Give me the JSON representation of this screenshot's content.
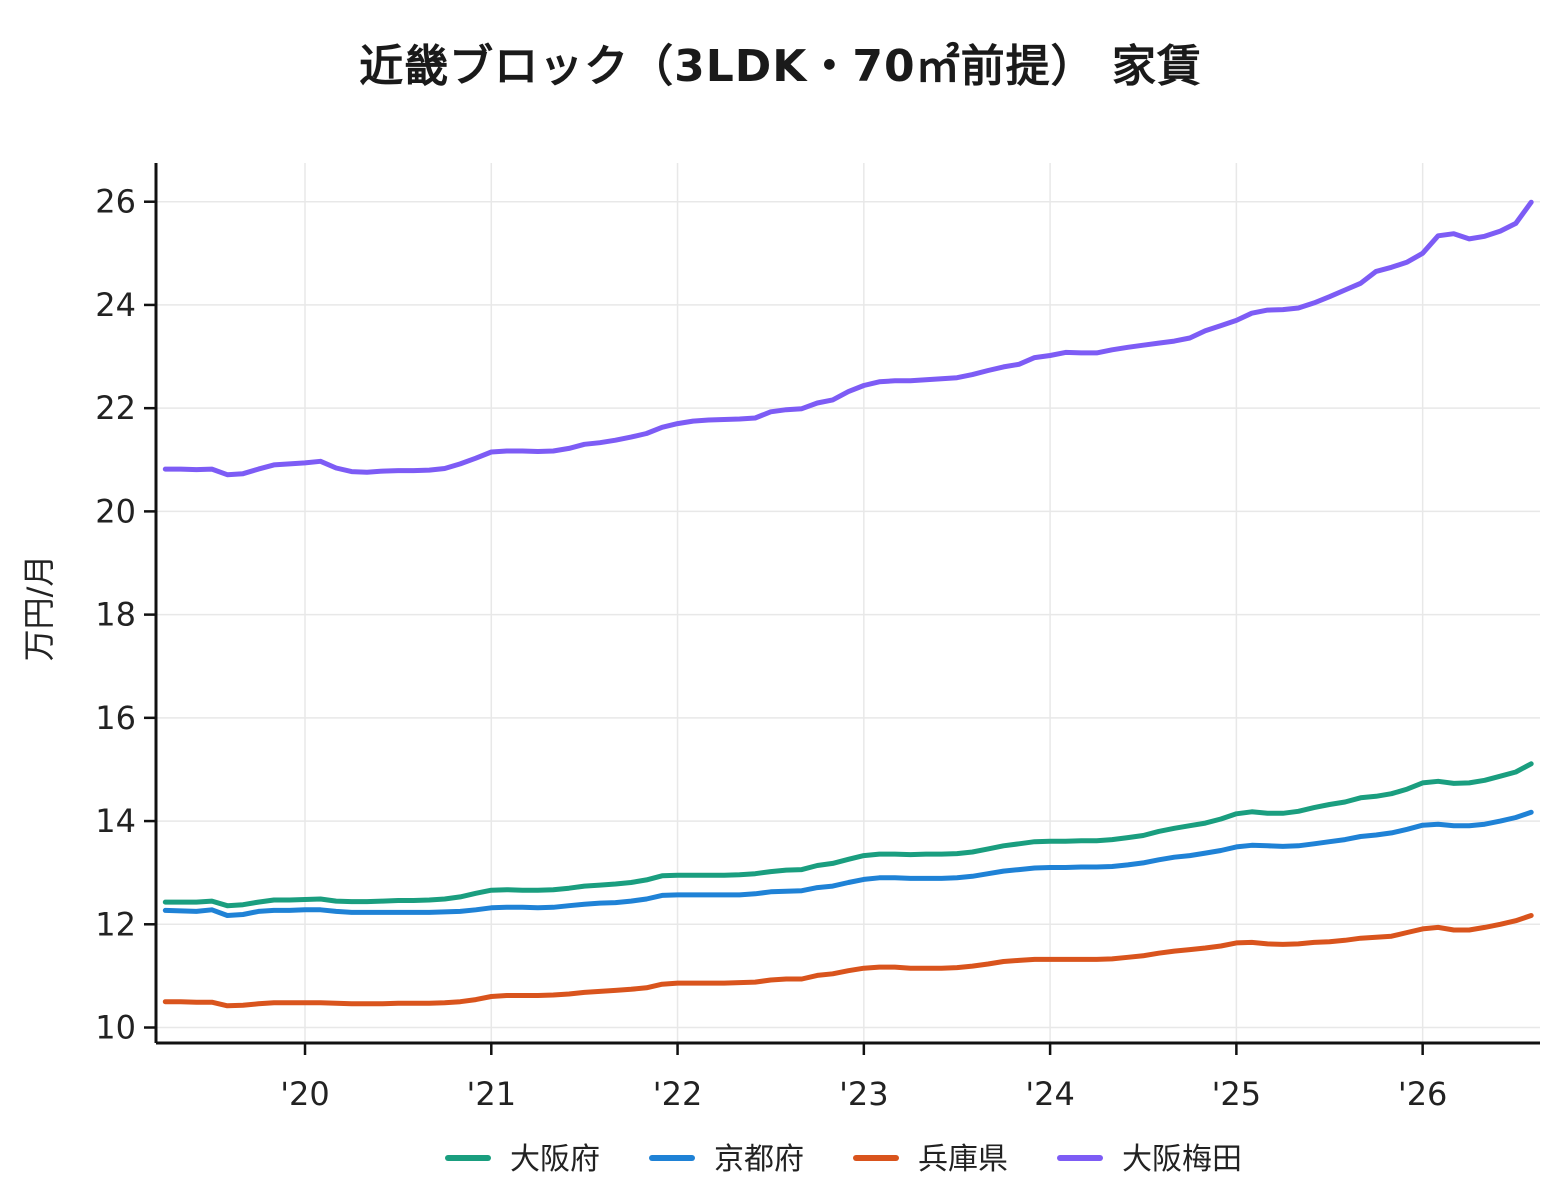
{
  "chart_data": {
    "type": "line",
    "title": "近畿ブロック（3LDK・70㎡前提） 家賃",
    "xlabel": "",
    "ylabel": "万円/月",
    "x_ticks": [
      {
        "value": 2020.0,
        "label": "'20"
      },
      {
        "value": 2021.0,
        "label": "'21"
      },
      {
        "value": 2022.0,
        "label": "'22"
      },
      {
        "value": 2023.0,
        "label": "'23"
      },
      {
        "value": 2024.0,
        "label": "'24"
      },
      {
        "value": 2025.0,
        "label": "'25"
      },
      {
        "value": 2026.0,
        "label": "'26"
      }
    ],
    "y_ticks": [
      10,
      12,
      14,
      16,
      18,
      20,
      22,
      24,
      26
    ],
    "xlim": [
      2019.2,
      2026.63
    ],
    "ylim": [
      9.7,
      26.75
    ],
    "grid": true,
    "legend_position": "bottom",
    "x": [
      2019.25,
      2019.333,
      2019.417,
      2019.5,
      2019.583,
      2019.667,
      2019.75,
      2019.833,
      2019.917,
      2020.0,
      2020.083,
      2020.167,
      2020.25,
      2020.333,
      2020.417,
      2020.5,
      2020.583,
      2020.667,
      2020.75,
      2020.833,
      2020.917,
      2021.0,
      2021.083,
      2021.167,
      2021.25,
      2021.333,
      2021.417,
      2021.5,
      2021.583,
      2021.667,
      2021.75,
      2021.833,
      2021.917,
      2022.0,
      2022.083,
      2022.167,
      2022.25,
      2022.333,
      2022.417,
      2022.5,
      2022.583,
      2022.667,
      2022.75,
      2022.833,
      2022.917,
      2023.0,
      2023.083,
      2023.167,
      2023.25,
      2023.333,
      2023.417,
      2023.5,
      2023.583,
      2023.667,
      2023.75,
      2023.833,
      2023.917,
      2024.0,
      2024.083,
      2024.167,
      2024.25,
      2024.333,
      2024.417,
      2024.5,
      2024.583,
      2024.667,
      2024.75,
      2024.833,
      2024.917,
      2025.0,
      2025.083,
      2025.167,
      2025.25,
      2025.333,
      2025.417,
      2025.5,
      2025.583,
      2025.667,
      2025.75,
      2025.833,
      2025.917,
      2026.0,
      2026.083,
      2026.167,
      2026.25,
      2026.333,
      2026.417,
      2026.5,
      2026.583
    ],
    "series": [
      {
        "name": "大阪府",
        "color": "#1a9e7f",
        "values": [
          12.43,
          12.43,
          12.43,
          12.45,
          12.36,
          12.38,
          12.43,
          12.47,
          12.47,
          12.48,
          12.49,
          12.45,
          12.44,
          12.44,
          12.45,
          12.46,
          12.46,
          12.47,
          12.49,
          12.53,
          12.6,
          12.66,
          12.67,
          12.66,
          12.66,
          12.67,
          12.7,
          12.74,
          12.76,
          12.78,
          12.81,
          12.86,
          12.94,
          12.95,
          12.95,
          12.95,
          12.95,
          12.96,
          12.98,
          13.02,
          13.05,
          13.06,
          13.14,
          13.18,
          13.26,
          13.33,
          13.36,
          13.36,
          13.35,
          13.36,
          13.36,
          13.37,
          13.4,
          13.46,
          13.52,
          13.56,
          13.6,
          13.61,
          13.61,
          13.62,
          13.62,
          13.64,
          13.68,
          13.72,
          13.8,
          13.86,
          13.91,
          13.96,
          14.04,
          14.14,
          14.18,
          14.15,
          14.15,
          14.19,
          14.26,
          14.32,
          14.37,
          14.45,
          14.48,
          14.53,
          14.62,
          14.74,
          14.77,
          14.73,
          14.74,
          14.79,
          14.87,
          14.95,
          15.11
        ]
      },
      {
        "name": "京都府",
        "color": "#1f82d6",
        "values": [
          12.27,
          12.26,
          12.25,
          12.28,
          12.17,
          12.19,
          12.25,
          12.27,
          12.27,
          12.28,
          12.28,
          12.25,
          12.23,
          12.23,
          12.23,
          12.23,
          12.23,
          12.23,
          12.24,
          12.25,
          12.28,
          12.32,
          12.33,
          12.33,
          12.32,
          12.33,
          12.36,
          12.39,
          12.41,
          12.42,
          12.45,
          12.49,
          12.56,
          12.57,
          12.57,
          12.57,
          12.57,
          12.57,
          12.59,
          12.63,
          12.64,
          12.65,
          12.71,
          12.74,
          12.81,
          12.87,
          12.9,
          12.9,
          12.89,
          12.89,
          12.89,
          12.9,
          12.93,
          12.98,
          13.03,
          13.06,
          13.09,
          13.1,
          13.1,
          13.11,
          13.11,
          13.12,
          13.15,
          13.19,
          13.25,
          13.3,
          13.33,
          13.38,
          13.43,
          13.5,
          13.53,
          13.52,
          13.51,
          13.52,
          13.56,
          13.6,
          13.64,
          13.7,
          13.73,
          13.77,
          13.84,
          13.92,
          13.94,
          13.91,
          13.91,
          13.94,
          14.0,
          14.07,
          14.17
        ]
      },
      {
        "name": "兵庫県",
        "color": "#d9541d",
        "values": [
          10.5,
          10.5,
          10.49,
          10.49,
          10.42,
          10.43,
          10.46,
          10.48,
          10.48,
          10.48,
          10.48,
          10.47,
          10.46,
          10.46,
          10.46,
          10.47,
          10.47,
          10.47,
          10.48,
          10.5,
          10.54,
          10.6,
          10.62,
          10.62,
          10.62,
          10.63,
          10.65,
          10.68,
          10.7,
          10.72,
          10.74,
          10.77,
          10.84,
          10.86,
          10.86,
          10.86,
          10.86,
          10.87,
          10.88,
          10.92,
          10.94,
          10.94,
          11.01,
          11.04,
          11.1,
          11.15,
          11.17,
          11.17,
          11.15,
          11.15,
          11.15,
          11.16,
          11.19,
          11.23,
          11.28,
          11.3,
          11.32,
          11.32,
          11.32,
          11.32,
          11.32,
          11.33,
          11.36,
          11.39,
          11.44,
          11.48,
          11.51,
          11.54,
          11.58,
          11.64,
          11.65,
          11.62,
          11.61,
          11.62,
          11.65,
          11.66,
          11.69,
          11.73,
          11.75,
          11.77,
          11.84,
          11.91,
          11.94,
          11.89,
          11.89,
          11.94,
          12.0,
          12.07,
          12.17
        ]
      },
      {
        "name": "大阪梅田",
        "color": "#7d5cf5",
        "values": [
          20.82,
          20.82,
          20.81,
          20.82,
          20.71,
          20.73,
          20.82,
          20.9,
          20.92,
          20.94,
          20.97,
          20.84,
          20.77,
          20.76,
          20.78,
          20.79,
          20.79,
          20.8,
          20.83,
          20.92,
          21.03,
          21.15,
          21.17,
          21.17,
          21.16,
          21.17,
          21.22,
          21.3,
          21.33,
          21.38,
          21.44,
          21.51,
          21.63,
          21.7,
          21.75,
          21.77,
          21.78,
          21.79,
          21.81,
          21.93,
          21.97,
          21.99,
          22.1,
          22.16,
          22.32,
          22.44,
          22.51,
          22.53,
          22.53,
          22.55,
          22.57,
          22.59,
          22.65,
          22.73,
          22.8,
          22.85,
          22.98,
          23.02,
          23.08,
          23.07,
          23.07,
          23.13,
          23.18,
          23.22,
          23.26,
          23.3,
          23.36,
          23.5,
          23.6,
          23.7,
          23.84,
          23.9,
          23.91,
          23.94,
          24.04,
          24.16,
          24.29,
          24.42,
          24.65,
          24.73,
          24.83,
          25.0,
          25.34,
          25.38,
          25.28,
          25.33,
          25.43,
          25.58,
          25.99
        ]
      }
    ]
  }
}
